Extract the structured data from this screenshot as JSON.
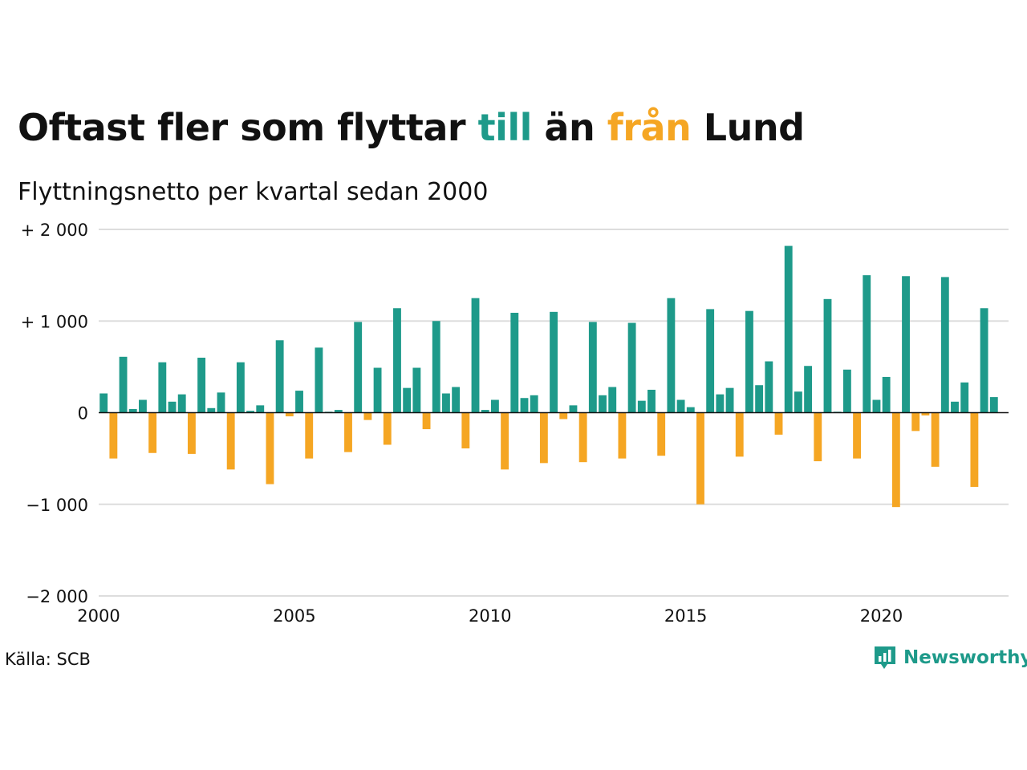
{
  "title": {
    "part1": "Oftast fler som flyttar ",
    "word_in": "till",
    "part2": " än ",
    "word_out": "från",
    "part3": " Lund"
  },
  "subtitle": "Flyttningsnetto per kvartal sedan 2000",
  "source": "Källa: SCB",
  "logo": {
    "text": "Newsworthy",
    "icon": "bar-chart-chat-icon"
  },
  "colors": {
    "positive": "#1e9a8a",
    "negative": "#f5a623",
    "grid": "#dddddd",
    "text": "#111111"
  },
  "chart_data": {
    "type": "bar",
    "title": "Oftast fler som flyttar till än från Lund",
    "subtitle": "Flyttningsnetto per kvartal sedan 2000",
    "xlabel": "",
    "ylabel": "",
    "ylim": [
      -2000,
      2000
    ],
    "xlim": [
      2000,
      2023.25
    ],
    "y_ticks": [
      2000,
      1000,
      0,
      -1000,
      -2000
    ],
    "y_tick_labels": [
      "+ 2 000",
      "+ 1 000",
      "0",
      "−1 000",
      "−2 000"
    ],
    "x_ticks": [
      2000,
      2005,
      2010,
      2015,
      2020
    ],
    "x_tick_labels": [
      "2000",
      "2005",
      "2010",
      "2015",
      "2020"
    ],
    "grid": true,
    "legend": "none",
    "period": "quarter",
    "start_year": 2000,
    "values": [
      210,
      -500,
      610,
      40,
      140,
      -440,
      550,
      120,
      200,
      -450,
      600,
      50,
      220,
      -620,
      550,
      20,
      80,
      -780,
      790,
      -40,
      240,
      -500,
      710,
      10,
      30,
      -430,
      990,
      -80,
      490,
      -350,
      1140,
      270,
      490,
      -180,
      1000,
      210,
      280,
      -390,
      1250,
      30,
      140,
      -620,
      1090,
      160,
      190,
      -550,
      1100,
      -70,
      80,
      -540,
      990,
      190,
      280,
      -500,
      980,
      130,
      250,
      -470,
      1250,
      140,
      60,
      -1000,
      1130,
      200,
      270,
      -480,
      1110,
      300,
      560,
      -240,
      1820,
      230,
      510,
      -530,
      1240,
      10,
      470,
      -500,
      1500,
      140,
      390,
      -1030,
      1490,
      -200,
      -30,
      -590,
      1480,
      120,
      330,
      -810,
      1140,
      170
    ]
  }
}
